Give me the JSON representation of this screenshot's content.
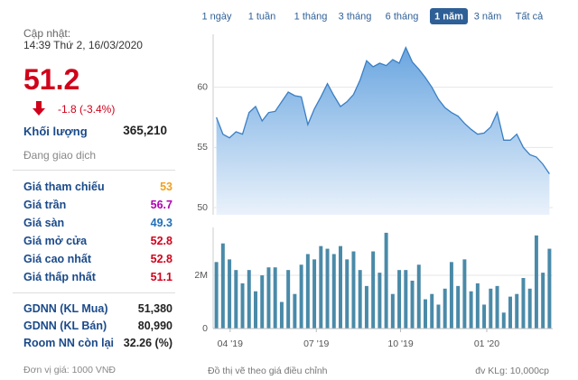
{
  "panel": {
    "update_label": "Cập nhật:",
    "update_time": "14:39 Thứ 2, 16/03/2020",
    "price": 51.2,
    "change": "-1.8 (-3.4%)",
    "volume_label": "Khối lượng",
    "volume": "365,210",
    "status": "Đang giao dịch",
    "prices": [
      {
        "label": "Giá tham chiếu",
        "value": 53,
        "color": "#f0a020"
      },
      {
        "label": "Giá trần",
        "value": 56.7,
        "color": "#b000b0"
      },
      {
        "label": "Giá sàn",
        "value": 49.3,
        "color": "#1e6fb8"
      },
      {
        "label": "Giá mở cửa",
        "value": 52.8,
        "color": "#d0021b"
      },
      {
        "label": "Giá cao nhất",
        "value": 52.8,
        "color": "#d0021b"
      },
      {
        "label": "Giá thấp nhất",
        "value": 51.1,
        "color": "#d0021b"
      }
    ],
    "foreign": [
      {
        "label": "GDNN (KL Mua)",
        "value": "51,380"
      },
      {
        "label": "GDNN (KL Bán)",
        "value": "80,990"
      },
      {
        "label": "Room NN còn lại",
        "value": "32.26 (%)"
      }
    ],
    "unit": "Đơn vị giá: 1000 VNĐ"
  },
  "tabs": [
    "1 ngày",
    "1 tuần",
    "1 tháng",
    "3 tháng",
    "6 tháng",
    "1 năm",
    "3 năm",
    "Tất cả"
  ],
  "selected_tab": 5,
  "notes": {
    "left": "Đồ thị vẽ theo giá điều chỉnh",
    "right": "đv KLg: 10,000cp"
  },
  "chart_data": [
    {
      "type": "area",
      "color": "#3a7fc4",
      "x": [
        0,
        1,
        2,
        3,
        4,
        5,
        6,
        7,
        8,
        9,
        10,
        11,
        12,
        13,
        14,
        15,
        16,
        17,
        18,
        19,
        20,
        21,
        22,
        23,
        24,
        25,
        26,
        27,
        28,
        29,
        30,
        31,
        32,
        33,
        34,
        35,
        36,
        37,
        38,
        39,
        40,
        41,
        42,
        43,
        44,
        45,
        46,
        47,
        48,
        49,
        50,
        51
      ],
      "values": [
        57.5,
        56.1,
        55.8,
        56.3,
        56.1,
        57.9,
        58.4,
        57.2,
        57.9,
        58,
        58.8,
        59.6,
        59.3,
        59.2,
        56.9,
        58.2,
        59.2,
        60.3,
        59.3,
        58.4,
        58.8,
        59.4,
        60.6,
        62.2,
        61.7,
        62,
        61.8,
        62.3,
        62,
        63.3,
        62.1,
        61.5,
        60.8,
        60,
        59,
        58.3,
        57.9,
        57.6,
        57,
        56.5,
        56.1,
        56.2,
        56.7,
        57.9,
        55.6,
        55.6,
        56.1,
        55,
        54.4,
        54.2,
        53.6,
        52.8
      ],
      "xlim": [
        -0.5,
        51.5
      ],
      "ylim": [
        49.4,
        64.4
      ],
      "yticks": [
        50,
        55,
        60
      ],
      "grid": true
    },
    {
      "type": "bar",
      "color": "#4a8aa8",
      "x": [
        0,
        1,
        2,
        3,
        4,
        5,
        6,
        7,
        8,
        9,
        10,
        11,
        12,
        13,
        14,
        15,
        16,
        17,
        18,
        19,
        20,
        21,
        22,
        23,
        24,
        25,
        26,
        27,
        28,
        29,
        30,
        31,
        32,
        33,
        34,
        35,
        36,
        37,
        38,
        39,
        40,
        41,
        42,
        43,
        44,
        45,
        46,
        47,
        48,
        49,
        50,
        51
      ],
      "values": [
        2500000,
        3200000,
        2600000,
        2200000,
        1700000,
        2200000,
        1400000,
        2000000,
        2300000,
        2300000,
        1000000,
        2200000,
        1300000,
        2400000,
        2800000,
        2600000,
        3100000,
        3000000,
        2800000,
        3100000,
        2600000,
        2900000,
        2200000,
        1600000,
        2900000,
        2100000,
        3600000,
        1300000,
        2200000,
        2200000,
        1800000,
        2400000,
        1100000,
        1300000,
        900000,
        1500000,
        2500000,
        1600000,
        2600000,
        1400000,
        1700000,
        900000,
        1500000,
        1600000,
        600000,
        1200000,
        1300000,
        1900000,
        1500000,
        3500000,
        2100000,
        3000000
      ],
      "xlim": [
        -0.5,
        51.5
      ],
      "ylim": [
        0,
        3800000
      ],
      "yticks": [
        0,
        {
          "value": 2000000,
          "label": "2M"
        }
      ],
      "xticks": [
        {
          "value": 2.1,
          "label": "04 '19"
        },
        {
          "value": 15.3,
          "label": "07 '19"
        },
        {
          "value": 28.2,
          "label": "10 '19"
        },
        {
          "value": 41.4,
          "label": "01 '20"
        }
      ],
      "grid": true
    }
  ]
}
